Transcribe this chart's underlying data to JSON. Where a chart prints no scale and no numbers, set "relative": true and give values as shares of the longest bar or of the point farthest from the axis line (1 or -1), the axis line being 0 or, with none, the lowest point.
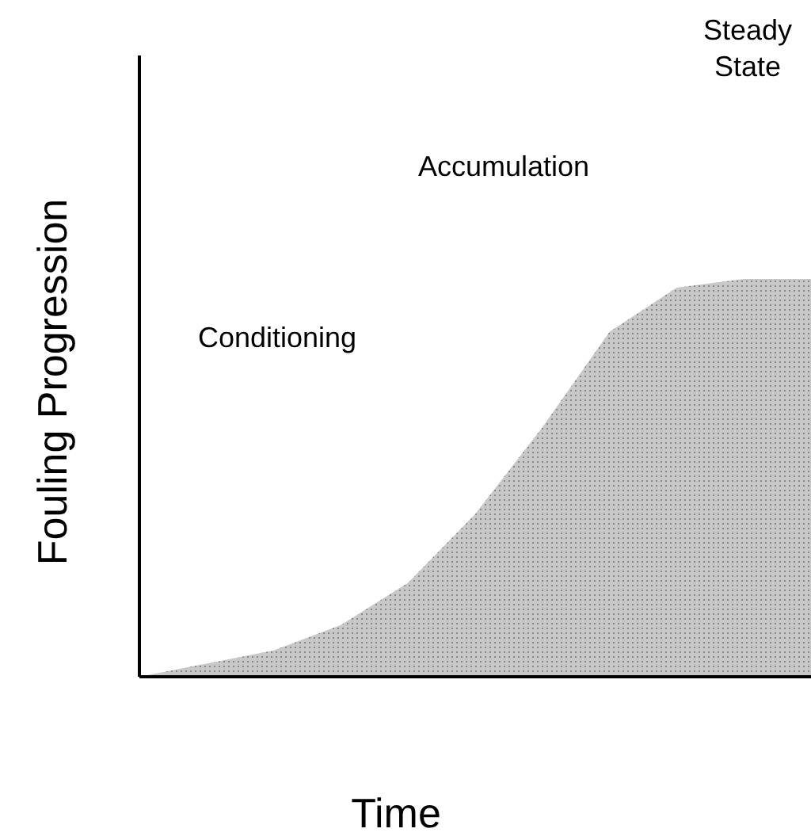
{
  "chart_data": {
    "type": "area",
    "relative": true,
    "xlabel": "Time",
    "ylabel": "Fouling Progression",
    "categories": [
      null,
      null,
      null,
      null,
      null,
      null,
      null,
      null,
      null,
      null,
      null
    ],
    "values": [
      0,
      0.033,
      0.066,
      0.13,
      0.236,
      0.409,
      0.627,
      0.867,
      0.978,
      1,
      1
    ],
    "color": "#c8c8c8",
    "annotations": [
      "Conditioning",
      "Accumulation",
      "Steady State"
    ],
    "legend": false
  }
}
